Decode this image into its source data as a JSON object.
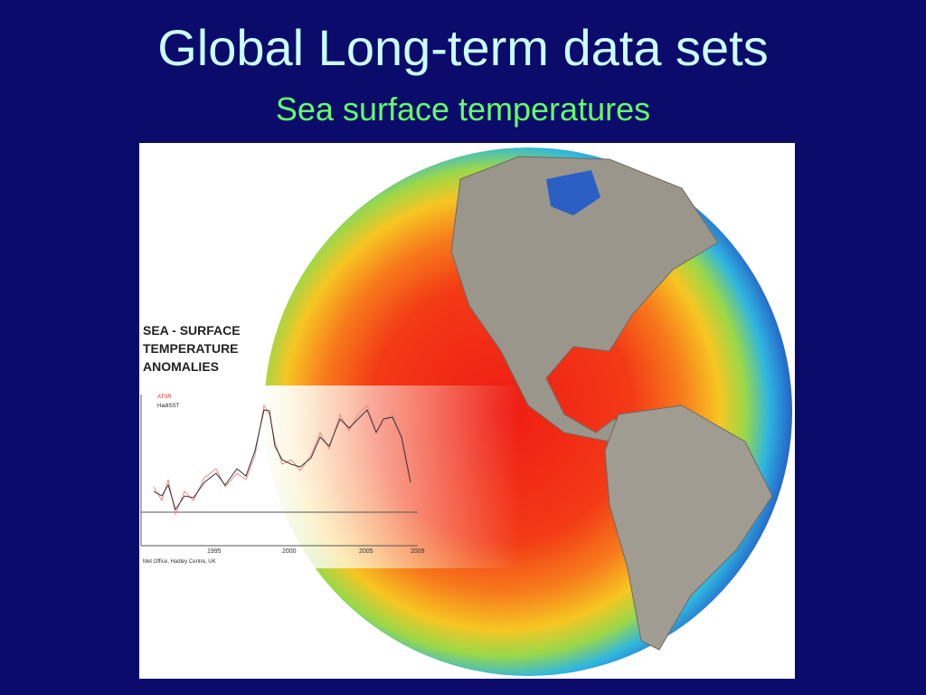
{
  "slide": {
    "title": "Global Long-term data sets",
    "subtitle": "Sea surface temperatures",
    "figure": {
      "inset_title": [
        "SEA - SURFACE",
        "TEMPERATURE",
        "ANOMALIES"
      ],
      "legend": [
        "ATSR",
        "HadISST"
      ],
      "x_labels": [
        "1995",
        "2000",
        "2005",
        "2009"
      ],
      "credit": "Met Office, Hadley Centre, UK"
    }
  }
}
